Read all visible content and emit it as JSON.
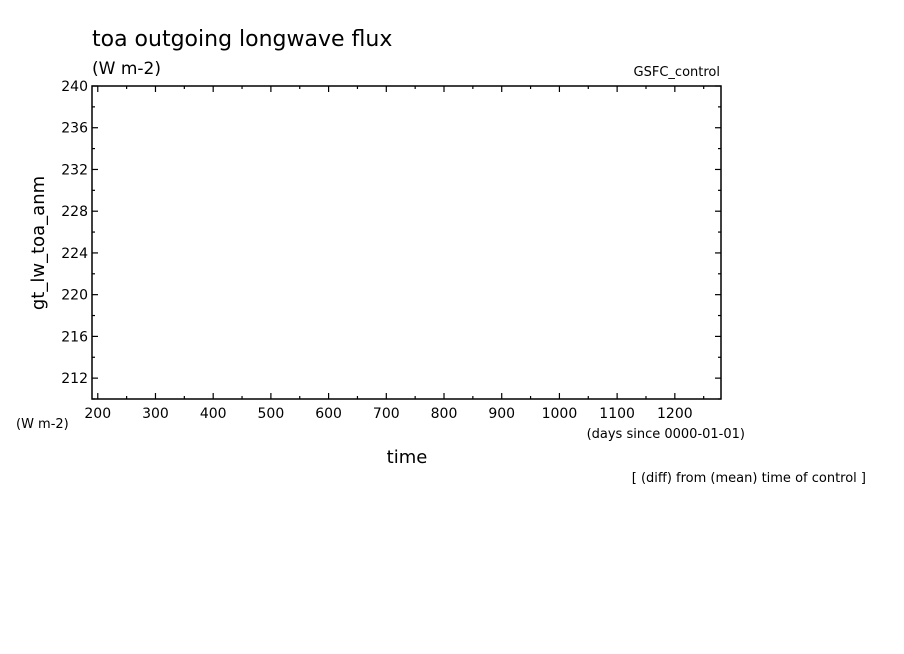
{
  "chart_data": {
    "type": "line",
    "title": "toa outgoing longwave flux",
    "title_units": "(W m-2)",
    "experiment_label": "GSFC_control",
    "ylabel": "gt_lw_toa_anm",
    "y_units": "(W m-2)",
    "xlabel": "time",
    "x_units": "(days since 0000-01-01)",
    "footnote": "[ (diff) from (mean) time of control ]",
    "xlim": [
      190,
      1280
    ],
    "ylim": [
      210,
      240
    ],
    "x_ticks": [
      200,
      300,
      400,
      500,
      600,
      700,
      800,
      900,
      1000,
      1100,
      1200
    ],
    "y_ticks": [
      212,
      216,
      220,
      224,
      228,
      232,
      236,
      240
    ],
    "grid": false,
    "series": []
  }
}
